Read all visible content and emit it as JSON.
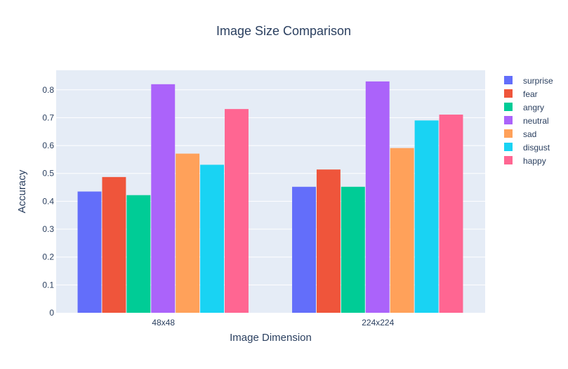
{
  "chart_data": {
    "type": "bar",
    "title": "Image Size Comparison",
    "xlabel": "Image Dimension",
    "ylabel": "Accuracy",
    "categories": [
      "48x48",
      "224x224"
    ],
    "ylim": [
      0,
      0.87
    ],
    "yticks": [
      0,
      0.1,
      0.2,
      0.3,
      0.4,
      0.5,
      0.6,
      0.7,
      0.8
    ],
    "ytick_labels": [
      "0",
      "0.1",
      "0.2",
      "0.3",
      "0.4",
      "0.5",
      "0.6",
      "0.7",
      "0.8"
    ],
    "grid": true,
    "legend_position": "right",
    "series": [
      {
        "name": "surprise",
        "color": "#636efa",
        "values": [
          0.435,
          0.452
        ]
      },
      {
        "name": "fear",
        "color": "#ef553b",
        "values": [
          0.487,
          0.514
        ]
      },
      {
        "name": "angry",
        "color": "#00cc96",
        "values": [
          0.422,
          0.452
        ]
      },
      {
        "name": "neutral",
        "color": "#ab63fa",
        "values": [
          0.82,
          0.83
        ]
      },
      {
        "name": "sad",
        "color": "#ffa15a",
        "values": [
          0.571,
          0.591
        ]
      },
      {
        "name": "disgust",
        "color": "#19d3f3",
        "values": [
          0.531,
          0.69
        ]
      },
      {
        "name": "happy",
        "color": "#ff6692",
        "values": [
          0.731,
          0.711
        ]
      }
    ],
    "colors": {
      "plot_bg": "#e5ecf6",
      "grid": "#ffffff",
      "text": "#2a3f5f"
    }
  }
}
